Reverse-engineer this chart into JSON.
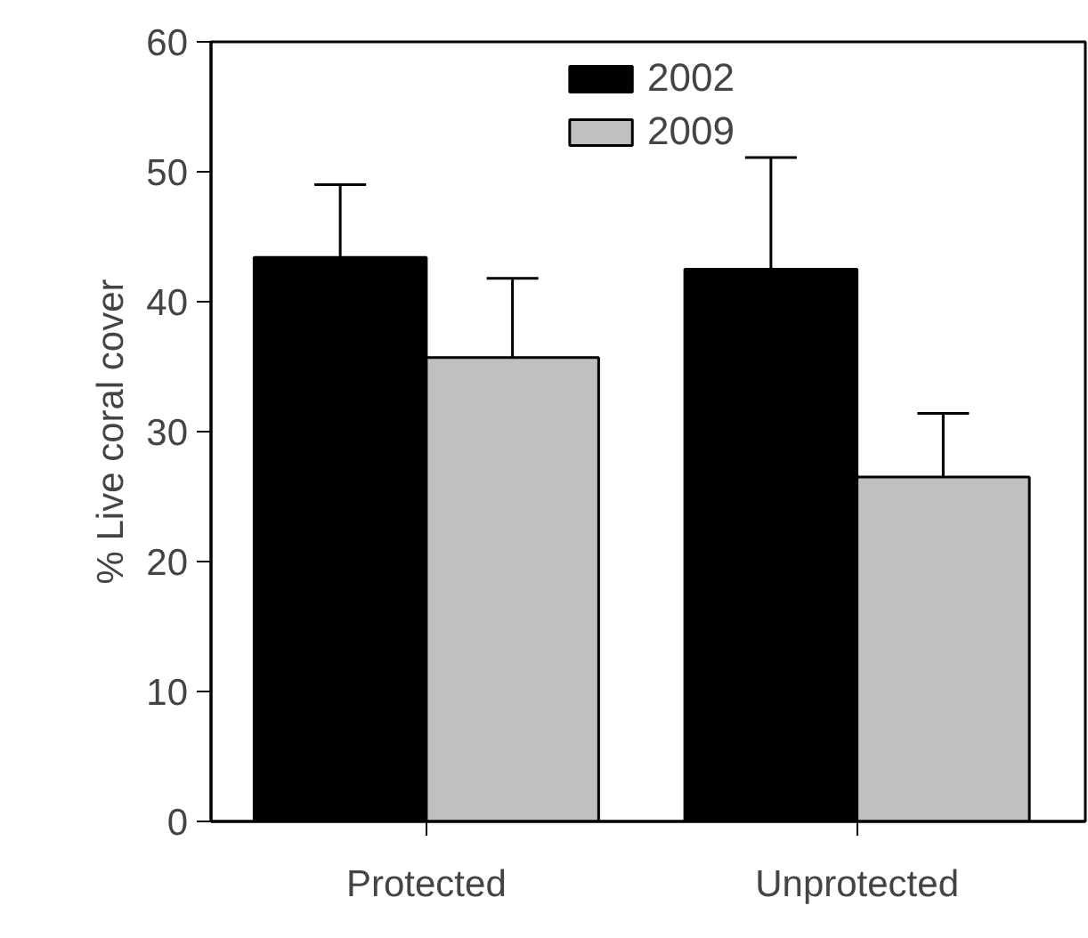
{
  "chart_data": {
    "type": "bar",
    "ylabel": "% Live coral cover",
    "categories": [
      "Protected",
      "Unprotected"
    ],
    "series": [
      {
        "name": "2002",
        "color": "#000000",
        "values": [
          43.4,
          42.5
        ],
        "errors": [
          [
            43.4,
            49.0
          ],
          [
            42.5,
            51.1
          ]
        ]
      },
      {
        "name": "2009",
        "color": "#c0c0c0",
        "values": [
          35.7,
          26.5
        ],
        "errors": [
          [
            35.7,
            41.8
          ],
          [
            26.5,
            31.4
          ]
        ]
      }
    ],
    "ylim": [
      0,
      60
    ],
    "yticks": [
      0,
      10,
      20,
      30,
      40,
      50,
      60
    ],
    "grid": false,
    "legend": "top"
  }
}
